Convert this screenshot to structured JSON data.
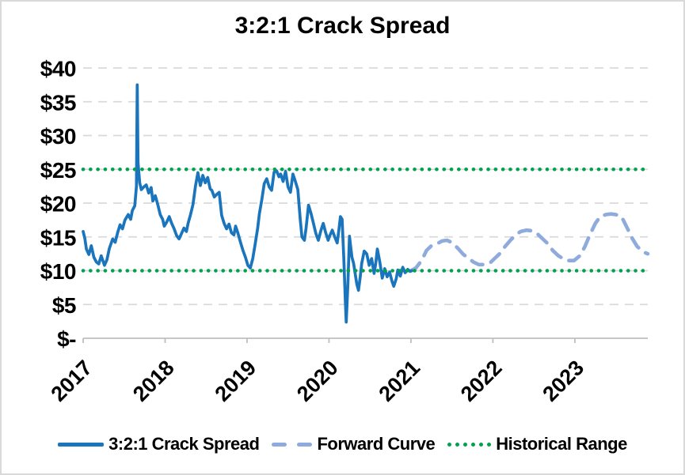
{
  "title": "3:2:1 Crack Spread",
  "colors": {
    "crack_spread_line": "#1b75bc",
    "forward_curve_line": "#8faadc",
    "historical_range_line": "#00a24f",
    "gridline": "#d9d9d9",
    "axis": "#bfbfbf",
    "text": "#000000"
  },
  "legend": {
    "items": [
      {
        "label": "3:2:1 Crack Spread",
        "style": "solid",
        "color": "#1b75bc"
      },
      {
        "label": "Forward Curve",
        "style": "dashed",
        "color": "#8faadc"
      },
      {
        "label": "Historical Range",
        "style": "dotted",
        "color": "#00a24f"
      }
    ]
  },
  "chart_data": {
    "type": "line",
    "title": "3:2:1 Crack Spread",
    "xlabel": "",
    "ylabel": "",
    "grid": true,
    "legend_position": "bottom",
    "x_axis": {
      "range": [
        2017,
        2023.89
      ],
      "ticks": [
        {
          "value": 2017,
          "label": "2017"
        },
        {
          "value": 2018,
          "label": "2018"
        },
        {
          "value": 2019,
          "label": "2019"
        },
        {
          "value": 2020,
          "label": "2020"
        },
        {
          "value": 2021,
          "label": "2021"
        },
        {
          "value": 2022,
          "label": "2022"
        },
        {
          "value": 2023,
          "label": "2023"
        }
      ]
    },
    "y_axis": {
      "range": [
        0,
        40
      ],
      "ticks": [
        {
          "value": 0,
          "label": "$-"
        },
        {
          "value": 5,
          "label": "$5"
        },
        {
          "value": 10,
          "label": "$10"
        },
        {
          "value": 15,
          "label": "$15"
        },
        {
          "value": 20,
          "label": "$20"
        },
        {
          "value": 25,
          "label": "$25"
        },
        {
          "value": 30,
          "label": "$30"
        },
        {
          "value": 35,
          "label": "$35"
        },
        {
          "value": 40,
          "label": "$40"
        }
      ]
    },
    "series": [
      {
        "name": "3:2:1 Crack Spread",
        "style": "solid",
        "color": "#1b75bc",
        "points": [
          [
            2017.0,
            15.8
          ],
          [
            2017.02,
            14.8
          ],
          [
            2017.04,
            13.2
          ],
          [
            2017.07,
            12.4
          ],
          [
            2017.1,
            13.7
          ],
          [
            2017.13,
            12.0
          ],
          [
            2017.16,
            11.3
          ],
          [
            2017.19,
            11.0
          ],
          [
            2017.22,
            12.2
          ],
          [
            2017.26,
            10.8
          ],
          [
            2017.29,
            11.6
          ],
          [
            2017.32,
            13.3
          ],
          [
            2017.36,
            14.7
          ],
          [
            2017.39,
            14.2
          ],
          [
            2017.42,
            15.6
          ],
          [
            2017.45,
            16.8
          ],
          [
            2017.48,
            16.2
          ],
          [
            2017.51,
            17.5
          ],
          [
            2017.55,
            18.3
          ],
          [
            2017.58,
            17.6
          ],
          [
            2017.6,
            18.9
          ],
          [
            2017.63,
            19.6
          ],
          [
            2017.65,
            22.5
          ],
          [
            2017.66,
            37.5
          ],
          [
            2017.67,
            26.0
          ],
          [
            2017.69,
            23.0
          ],
          [
            2017.71,
            22.0
          ],
          [
            2017.74,
            22.4
          ],
          [
            2017.77,
            22.7
          ],
          [
            2017.8,
            21.5
          ],
          [
            2017.83,
            22.3
          ],
          [
            2017.85,
            20.3
          ],
          [
            2017.88,
            21.1
          ],
          [
            2017.91,
            19.8
          ],
          [
            2017.94,
            18.3
          ],
          [
            2017.97,
            17.6
          ],
          [
            2017.99,
            16.6
          ],
          [
            2018.02,
            17.2
          ],
          [
            2018.05,
            18.0
          ],
          [
            2018.08,
            17.0
          ],
          [
            2018.11,
            16.2
          ],
          [
            2018.14,
            15.2
          ],
          [
            2018.17,
            14.7
          ],
          [
            2018.2,
            15.5
          ],
          [
            2018.23,
            16.3
          ],
          [
            2018.26,
            15.8
          ],
          [
            2018.28,
            17.0
          ],
          [
            2018.31,
            18.3
          ],
          [
            2018.34,
            19.8
          ],
          [
            2018.37,
            22.5
          ],
          [
            2018.4,
            24.5
          ],
          [
            2018.43,
            22.6
          ],
          [
            2018.46,
            24.1
          ],
          [
            2018.49,
            23.0
          ],
          [
            2018.52,
            23.8
          ],
          [
            2018.55,
            22.1
          ],
          [
            2018.57,
            21.9
          ],
          [
            2018.6,
            20.9
          ],
          [
            2018.63,
            21.3
          ],
          [
            2018.66,
            21.6
          ],
          [
            2018.69,
            18.2
          ],
          [
            2018.72,
            17.0
          ],
          [
            2018.75,
            16.2
          ],
          [
            2018.78,
            16.9
          ],
          [
            2018.81,
            15.6
          ],
          [
            2018.84,
            15.3
          ],
          [
            2018.86,
            16.6
          ],
          [
            2018.89,
            15.5
          ],
          [
            2018.92,
            14.2
          ],
          [
            2018.95,
            13.0
          ],
          [
            2018.98,
            12.0
          ],
          [
            2019.01,
            10.8
          ],
          [
            2019.04,
            10.4
          ],
          [
            2019.07,
            11.8
          ],
          [
            2019.1,
            14.0
          ],
          [
            2019.13,
            16.3
          ],
          [
            2019.15,
            18.4
          ],
          [
            2019.18,
            20.5
          ],
          [
            2019.21,
            22.9
          ],
          [
            2019.24,
            23.6
          ],
          [
            2019.27,
            22.4
          ],
          [
            2019.3,
            21.9
          ],
          [
            2019.33,
            24.6
          ],
          [
            2019.36,
            24.8
          ],
          [
            2019.39,
            23.9
          ],
          [
            2019.41,
            24.3
          ],
          [
            2019.44,
            23.2
          ],
          [
            2019.47,
            24.7
          ],
          [
            2019.5,
            22.4
          ],
          [
            2019.53,
            21.6
          ],
          [
            2019.56,
            24.3
          ],
          [
            2019.59,
            23.2
          ],
          [
            2019.62,
            22.0
          ],
          [
            2019.65,
            17.5
          ],
          [
            2019.67,
            15.0
          ],
          [
            2019.7,
            14.5
          ],
          [
            2019.72,
            16.3
          ],
          [
            2019.75,
            19.7
          ],
          [
            2019.78,
            18.5
          ],
          [
            2019.81,
            17.0
          ],
          [
            2019.84,
            15.5
          ],
          [
            2019.87,
            14.5
          ],
          [
            2019.9,
            15.9
          ],
          [
            2019.93,
            17.0
          ],
          [
            2019.96,
            15.6
          ],
          [
            2019.99,
            14.5
          ],
          [
            2020.01,
            15.2
          ],
          [
            2020.04,
            16.0
          ],
          [
            2020.07,
            15.0
          ],
          [
            2020.1,
            14.1
          ],
          [
            2020.12,
            16.0
          ],
          [
            2020.14,
            18.0
          ],
          [
            2020.16,
            17.6
          ],
          [
            2020.18,
            12.0
          ],
          [
            2020.2,
            5.5
          ],
          [
            2020.21,
            2.4
          ],
          [
            2020.23,
            8.0
          ],
          [
            2020.25,
            15.1
          ],
          [
            2020.27,
            13.0
          ],
          [
            2020.28,
            12.0
          ],
          [
            2020.3,
            11.1
          ],
          [
            2020.32,
            9.5
          ],
          [
            2020.34,
            8.0
          ],
          [
            2020.36,
            7.1
          ],
          [
            2020.38,
            9.0
          ],
          [
            2020.4,
            11.1
          ],
          [
            2020.43,
            12.9
          ],
          [
            2020.46,
            12.5
          ],
          [
            2020.49,
            10.8
          ],
          [
            2020.52,
            11.8
          ],
          [
            2020.55,
            9.6
          ],
          [
            2020.57,
            11.0
          ],
          [
            2020.59,
            13.2
          ],
          [
            2020.62,
            11.3
          ],
          [
            2020.65,
            8.9
          ],
          [
            2020.68,
            10.3
          ],
          [
            2020.71,
            9.1
          ],
          [
            2020.74,
            9.8
          ],
          [
            2020.77,
            8.4
          ],
          [
            2020.79,
            7.7
          ],
          [
            2020.82,
            8.8
          ],
          [
            2020.84,
            10.1
          ],
          [
            2020.87,
            9.2
          ],
          [
            2020.9,
            10.5
          ],
          [
            2020.93,
            9.7
          ],
          [
            2020.96,
            10.2
          ],
          [
            2020.99,
            9.9
          ],
          [
            2021.01,
            10.0
          ]
        ]
      },
      {
        "name": "Forward Curve",
        "style": "dashed",
        "color": "#8faadc",
        "points": [
          [
            2021.0,
            10.0
          ],
          [
            2021.06,
            10.4
          ],
          [
            2021.13,
            11.5
          ],
          [
            2021.19,
            13.0
          ],
          [
            2021.25,
            13.7
          ],
          [
            2021.32,
            14.0
          ],
          [
            2021.38,
            14.4
          ],
          [
            2021.44,
            14.5
          ],
          [
            2021.51,
            14.1
          ],
          [
            2021.58,
            13.2
          ],
          [
            2021.64,
            12.4
          ],
          [
            2021.71,
            11.8
          ],
          [
            2021.76,
            11.3
          ],
          [
            2021.83,
            10.9
          ],
          [
            2021.9,
            10.9
          ],
          [
            2021.97,
            11.2
          ],
          [
            2022.02,
            11.8
          ],
          [
            2022.09,
            12.6
          ],
          [
            2022.15,
            13.6
          ],
          [
            2022.22,
            14.6
          ],
          [
            2022.29,
            15.4
          ],
          [
            2022.34,
            15.8
          ],
          [
            2022.41,
            16.0
          ],
          [
            2022.48,
            15.9
          ],
          [
            2022.54,
            15.5
          ],
          [
            2022.6,
            14.8
          ],
          [
            2022.67,
            14.0
          ],
          [
            2022.73,
            13.0
          ],
          [
            2022.8,
            12.2
          ],
          [
            2022.87,
            11.7
          ],
          [
            2022.92,
            11.5
          ],
          [
            2022.99,
            11.5
          ],
          [
            2023.06,
            12.2
          ],
          [
            2023.12,
            13.5
          ],
          [
            2023.18,
            15.2
          ],
          [
            2023.25,
            17.0
          ],
          [
            2023.31,
            18.0
          ],
          [
            2023.38,
            18.3
          ],
          [
            2023.44,
            18.4
          ],
          [
            2023.5,
            18.3
          ],
          [
            2023.57,
            18.0
          ],
          [
            2023.64,
            16.3
          ],
          [
            2023.7,
            14.8
          ],
          [
            2023.76,
            13.6
          ],
          [
            2023.83,
            12.8
          ],
          [
            2023.89,
            12.5
          ]
        ]
      },
      {
        "name": "Historical Range",
        "style": "dotted",
        "color": "#00a24f",
        "horizontal_lines": [
          10,
          25
        ]
      }
    ]
  }
}
